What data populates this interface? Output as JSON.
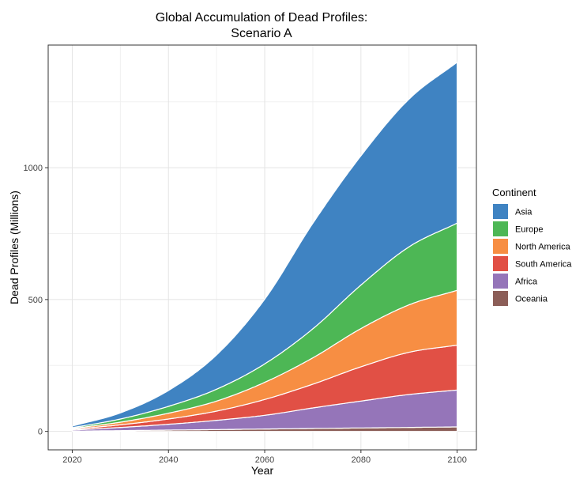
{
  "chart_data": {
    "type": "area",
    "stacked": true,
    "title_lines": [
      "Global Accumulation of Dead Profiles:",
      "Scenario A"
    ],
    "xlabel": "Year",
    "ylabel": "Dead Profiles (Millions)",
    "xlim": [
      2015,
      2104
    ],
    "ylim": [
      -70,
      1465
    ],
    "xticks": [
      2020,
      2040,
      2060,
      2080,
      2100
    ],
    "yticks": [
      0,
      500,
      1000
    ],
    "legend_title": "Continent",
    "legend_position": "right",
    "x": [
      2020,
      2030,
      2040,
      2050,
      2060,
      2070,
      2080,
      2090,
      2100
    ],
    "series": [
      {
        "name": "Oceania",
        "color": "#8c5e58",
        "values": [
          1,
          3,
          5,
          7,
          9,
          11,
          13,
          15,
          17
        ]
      },
      {
        "name": "Africa",
        "color": "#9575b9",
        "values": [
          4,
          12,
          22,
          35,
          52,
          78,
          102,
          125,
          140
        ]
      },
      {
        "name": "South America",
        "color": "#e15045",
        "values": [
          3,
          10,
          20,
          35,
          60,
          90,
          130,
          160,
          170
        ]
      },
      {
        "name": "North America",
        "color": "#f78e43",
        "values": [
          3,
          10,
          22,
          38,
          65,
          100,
          145,
          180,
          208
        ]
      },
      {
        "name": "Europe",
        "color": "#4db755",
        "values": [
          3,
          12,
          26,
          45,
          70,
          110,
          165,
          220,
          255
        ]
      },
      {
        "name": "Asia",
        "color": "#3f83c2",
        "values": [
          6,
          23,
          60,
          130,
          245,
          400,
          490,
          560,
          610
        ]
      }
    ]
  }
}
